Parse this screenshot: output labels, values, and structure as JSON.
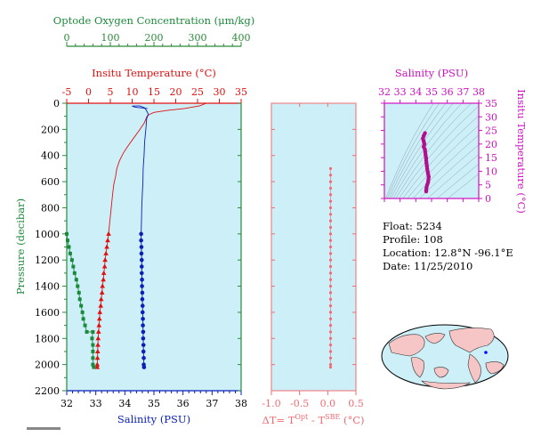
{
  "colors": {
    "oxygen": "#1a8a3a",
    "temperature": "#e01010",
    "salinity": "#0a1eb8",
    "delta": "#f06c72",
    "ts": "#d010c0",
    "panel_bg": "#cdeff8",
    "green_axis": "#2a8a3a"
  },
  "info": {
    "float_label": "Float:  5234",
    "profile_label": "Profile:  108",
    "location_label": "Location:  12.8°N  -96.1°E",
    "date_label": "Date:  11/25/2010"
  },
  "chart_data": [
    {
      "type": "line",
      "name": "profile",
      "ylabel": "Pressure (decibar)",
      "ylim": [
        2200,
        0
      ],
      "yticks": [
        "0",
        "200",
        "400",
        "600",
        "800",
        "1000",
        "1200",
        "1400",
        "1600",
        "1800",
        "2000",
        "2200"
      ],
      "grid": false,
      "axes": {
        "oxygen": {
          "label": "Optode Oxygen Concentration (μm/kg)",
          "lim": [
            0,
            400
          ],
          "ticks": [
            "0",
            "100",
            "200",
            "300",
            "400"
          ]
        },
        "temperature": {
          "label": "Insitu Temperature (°C)",
          "lim": [
            -5,
            35
          ],
          "ticks": [
            "-5",
            "0",
            "5",
            "10",
            "15",
            "20",
            "25",
            "30",
            "35"
          ]
        },
        "salinity": {
          "label": "Salinity (PSU)",
          "lim": [
            32,
            38
          ],
          "ticks": [
            "32",
            "33",
            "34",
            "35",
            "36",
            "37",
            "38"
          ]
        }
      },
      "series": [
        {
          "axis": "temperature",
          "line": [
            [
              27,
              0
            ],
            [
              25.5,
              20
            ],
            [
              22,
              40
            ],
            [
              18,
              55
            ],
            [
              15,
              70
            ],
            [
              14,
              85
            ],
            [
              13.4,
              100
            ],
            [
              12.8,
              150
            ],
            [
              11.8,
              200
            ],
            [
              10.5,
              260
            ],
            [
              9,
              330
            ],
            [
              8,
              380
            ],
            [
              7.1,
              440
            ],
            [
              6.5,
              500
            ],
            [
              6.2,
              560
            ],
            [
              5.8,
              620
            ],
            [
              5.5,
              700
            ],
            [
              5.2,
              800
            ],
            [
              4.9,
              900
            ],
            [
              4.6,
              1000
            ]
          ],
          "points": [
            [
              4.6,
              1000
            ],
            [
              4.4,
              1050
            ],
            [
              4.2,
              1100
            ],
            [
              4.0,
              1150
            ],
            [
              3.8,
              1200
            ],
            [
              3.7,
              1250
            ],
            [
              3.5,
              1300
            ],
            [
              3.4,
              1350
            ],
            [
              3.2,
              1400
            ],
            [
              3.1,
              1450
            ],
            [
              2.9,
              1500
            ],
            [
              2.8,
              1550
            ],
            [
              2.6,
              1600
            ],
            [
              2.5,
              1650
            ],
            [
              2.4,
              1700
            ],
            [
              2.3,
              1750
            ],
            [
              2.2,
              1800
            ],
            [
              2.15,
              1850
            ],
            [
              2.1,
              1900
            ],
            [
              2.05,
              1950
            ],
            [
              2.0,
              2000
            ],
            [
              2.0,
              2020
            ]
          ]
        },
        {
          "axis": "salinity",
          "line": [
            [
              34.5,
              20
            ],
            [
              34.68,
              35
            ],
            [
              34.74,
              55
            ],
            [
              34.78,
              70
            ],
            [
              34.8,
              85
            ],
            [
              34.75,
              120
            ],
            [
              34.72,
              200
            ],
            [
              34.68,
              300
            ],
            [
              34.66,
              400
            ],
            [
              34.63,
              500
            ],
            [
              34.62,
              600
            ],
            [
              34.6,
              700
            ],
            [
              34.58,
              800
            ],
            [
              34.57,
              900
            ],
            [
              34.56,
              1000
            ]
          ],
          "hook": [
            [
              34.78,
              40
            ],
            [
              34.35,
              30
            ],
            [
              34.25,
              22
            ],
            [
              34.5,
              20
            ]
          ],
          "points": [
            [
              34.56,
              1000
            ],
            [
              34.56,
              1050
            ],
            [
              34.57,
              1100
            ],
            [
              34.57,
              1150
            ],
            [
              34.58,
              1200
            ],
            [
              34.58,
              1250
            ],
            [
              34.58,
              1300
            ],
            [
              34.59,
              1350
            ],
            [
              34.59,
              1400
            ],
            [
              34.6,
              1450
            ],
            [
              34.6,
              1500
            ],
            [
              34.61,
              1550
            ],
            [
              34.61,
              1600
            ],
            [
              34.62,
              1650
            ],
            [
              34.62,
              1700
            ],
            [
              34.63,
              1750
            ],
            [
              34.63,
              1800
            ],
            [
              34.64,
              1850
            ],
            [
              34.64,
              1900
            ],
            [
              34.65,
              1950
            ],
            [
              34.65,
              2000
            ],
            [
              34.66,
              2020
            ]
          ]
        },
        {
          "axis": "oxygen",
          "points": [
            [
              0,
              1000
            ],
            [
              2,
              1050
            ],
            [
              5,
              1100
            ],
            [
              8,
              1150
            ],
            [
              12,
              1200
            ],
            [
              15,
              1250
            ],
            [
              18,
              1300
            ],
            [
              22,
              1350
            ],
            [
              25,
              1400
            ],
            [
              28,
              1450
            ],
            [
              30,
              1500
            ],
            [
              33,
              1550
            ],
            [
              36,
              1600
            ],
            [
              38,
              1650
            ],
            [
              42,
              1700
            ],
            [
              46,
              1750
            ],
            [
              60,
              1750
            ],
            [
              58,
              1800
            ],
            [
              60,
              1850
            ],
            [
              60,
              1900
            ],
            [
              60,
              1950
            ],
            [
              60,
              2000
            ],
            [
              62,
              2020
            ]
          ]
        }
      ]
    },
    {
      "type": "scatter",
      "name": "delta",
      "xlabel": "ΔT= T",
      "xlabel_sup1": "Opt",
      "xlabel_mid": " - T",
      "xlabel_sup2": "SBE",
      "xlabel_end": " (°C)",
      "xlim": [
        -1,
        0.5
      ],
      "ylim": [
        2200,
        0
      ],
      "xticks": [
        "-1.0",
        "-0.5",
        "0.0",
        "0.5"
      ],
      "values": [
        [
          0.05,
          500
        ],
        [
          0.05,
          550
        ],
        [
          0.05,
          600
        ],
        [
          0.05,
          650
        ],
        [
          0.05,
          700
        ],
        [
          0.05,
          750
        ],
        [
          0.05,
          800
        ],
        [
          0.05,
          850
        ],
        [
          0.05,
          900
        ],
        [
          0.05,
          950
        ],
        [
          0.05,
          1000
        ],
        [
          0.05,
          1050
        ],
        [
          0.05,
          1100
        ],
        [
          0.05,
          1150
        ],
        [
          0.05,
          1200
        ],
        [
          0.05,
          1250
        ],
        [
          0.05,
          1300
        ],
        [
          0.05,
          1350
        ],
        [
          0.05,
          1400
        ],
        [
          0.05,
          1450
        ],
        [
          0.05,
          1500
        ],
        [
          0.05,
          1550
        ],
        [
          0.05,
          1600
        ],
        [
          0.05,
          1650
        ],
        [
          0.05,
          1700
        ],
        [
          0.05,
          1750
        ],
        [
          0.05,
          1800
        ],
        [
          0.05,
          1850
        ],
        [
          0.05,
          1900
        ],
        [
          0.05,
          1950
        ],
        [
          0.05,
          2000
        ],
        [
          0.05,
          2020
        ]
      ]
    },
    {
      "type": "scatter",
      "name": "ts-diagram",
      "xlabel": "Salinity (PSU)",
      "ylabel": "Insitu Temperature (°C)",
      "xlim": [
        32,
        38
      ],
      "ylim": [
        0,
        35
      ],
      "xticks": [
        "32",
        "33",
        "34",
        "35",
        "36",
        "37",
        "38"
      ],
      "yticks": [
        "0",
        "5",
        "10",
        "15",
        "20",
        "25",
        "30",
        "35"
      ],
      "values": [
        [
          34.58,
          24
        ],
        [
          34.5,
          23
        ],
        [
          34.45,
          22
        ],
        [
          34.5,
          21
        ],
        [
          34.55,
          20
        ],
        [
          34.5,
          19
        ],
        [
          34.58,
          18
        ],
        [
          34.6,
          17
        ],
        [
          34.62,
          16
        ],
        [
          34.65,
          15
        ],
        [
          34.66,
          14
        ],
        [
          34.68,
          13
        ],
        [
          34.7,
          12
        ],
        [
          34.72,
          11
        ],
        [
          34.75,
          10
        ],
        [
          34.78,
          9
        ],
        [
          34.82,
          8
        ],
        [
          34.8,
          7
        ],
        [
          34.78,
          6
        ],
        [
          34.72,
          5
        ],
        [
          34.68,
          4
        ],
        [
          34.66,
          3
        ],
        [
          34.66,
          2.6
        ]
      ]
    }
  ]
}
